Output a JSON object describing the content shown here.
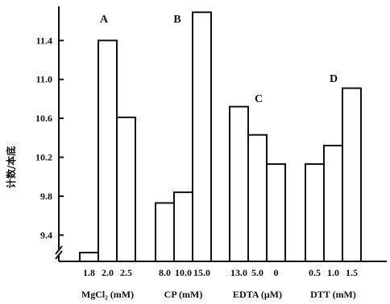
{
  "chart_data": {
    "type": "bar",
    "ylabel": "计数/本底",
    "ylim": [
      9.13,
      11.75
    ],
    "yticks": [
      "9.4",
      "9.8",
      "10.2",
      "10.6",
      "11.0",
      "11.4"
    ],
    "groups": [
      {
        "letter": "A",
        "name": "MgCl₂ (mM)",
        "categories": [
          "1.8",
          "2.0",
          "2.5"
        ],
        "values": [
          9.22,
          11.4,
          10.61
        ]
      },
      {
        "letter": "B",
        "name": "CP (mM)",
        "categories": [
          "8.0",
          "10.0",
          "15.0"
        ],
        "values": [
          9.73,
          9.84,
          11.69
        ]
      },
      {
        "letter": "C",
        "name": "EDTA (μM)",
        "categories": [
          "13.0",
          "5.0",
          "0"
        ],
        "values": [
          10.72,
          10.43,
          10.13
        ]
      },
      {
        "letter": "D",
        "name": "DTT (mM)",
        "categories": [
          "0.5",
          "1.0",
          "1.5"
        ],
        "values": [
          10.13,
          10.32,
          10.91
        ]
      }
    ]
  }
}
